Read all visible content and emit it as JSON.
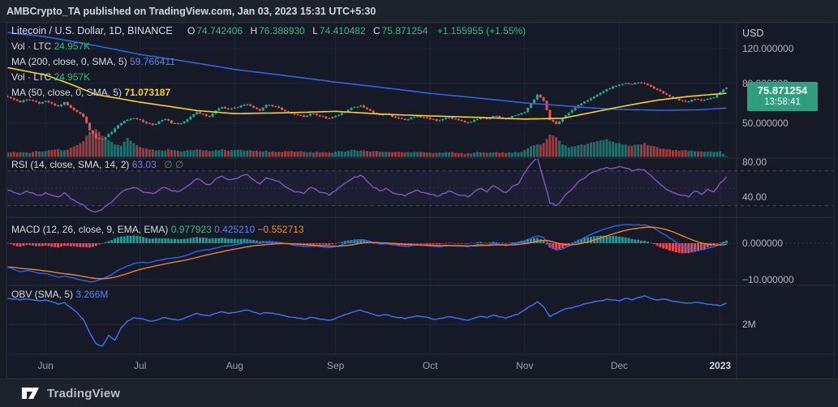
{
  "header": {
    "title": "AMBCrypto_TA published on TradingView.com, Jan 03, 2023 15:31 UTC+5:30"
  },
  "footer": {
    "brand": "TradingView"
  },
  "legends": {
    "main": {
      "symbol": "Litecoin / U.S. Dollar, 1D, BINANCE",
      "o_label": "O",
      "o": "74.742406",
      "h_label": "H",
      "h": "76.388930",
      "l_label": "L",
      "l": "74.410482",
      "c_label": "C",
      "c": "75.871254",
      "change": "+1.155955 (+1.55%)"
    },
    "vol_top": {
      "label": "Vol · LTC",
      "value": "24.957K"
    },
    "ma200": {
      "label": "MA (200, close, 0, SMA, 5)",
      "value": "59.766411"
    },
    "vol_bottom": {
      "label": "Vol · LTC",
      "value": "24.957K"
    },
    "ma50": {
      "label": "MA (50, close, 0, SMA, 5)",
      "value": "71.073187"
    },
    "rsi": {
      "label": "RSI (14, close, SMA, 14, 2)",
      "value": "63.03",
      "empty": "∅  ∅"
    },
    "macd": {
      "label": "MACD (12, 26, close, 9, EMA, EMA)",
      "hist": "0.977923",
      "macd": "0.425210",
      "signal": "−0.552713"
    },
    "obv": {
      "label": "OBV (SMA, 5)",
      "value": "3.266M"
    }
  },
  "axis": {
    "currency": "USD",
    "tag": {
      "price": "75.871254",
      "countdown": "13:58:41"
    }
  },
  "colors": {
    "panel_bg": "#151a26",
    "border": "#2a2e39",
    "grid": "#1f2434",
    "dashed": "#787b86",
    "up": "#26a69a",
    "down": "#ef5350",
    "hist_neg": "#f7525f",
    "ma50": "#f5d327",
    "ma200": "#2e64e8",
    "rsi": "#7e57c2",
    "rsi_band": "rgba(126,87,194,0.08)",
    "macd_line": "#2962ff",
    "signal_line": "#ef8232",
    "obv": "#3b6ef0",
    "tag_bg": "#2f9e7f"
  },
  "chart_data": {
    "type": "candlestick+indicators",
    "symbol": "LTCUSD",
    "timeframe": "1D",
    "panes": [
      "price+volume",
      "RSI",
      "MACD",
      "OBV"
    ],
    "price_scale": "log",
    "months": [
      {
        "label": "Jun",
        "i": 6
      },
      {
        "label": "Jul",
        "i": 21
      },
      {
        "label": "Aug",
        "i": 36
      },
      {
        "label": "Sep",
        "i": 52
      },
      {
        "label": "Oct",
        "i": 67
      },
      {
        "label": "Nov",
        "i": 82
      },
      {
        "label": "Dec",
        "i": 97
      },
      {
        "label": "2023",
        "i": 113,
        "highlight": true
      }
    ],
    "close": [
      68,
      66,
      64,
      66,
      65,
      63,
      65,
      63,
      61,
      64,
      60,
      57,
      54,
      46,
      42,
      41.5,
      44,
      47,
      50,
      52,
      53,
      52,
      50,
      49,
      51,
      52.5,
      50,
      49.5,
      51,
      54,
      57,
      55.5,
      54,
      58,
      60.5,
      59,
      60,
      61.5,
      62.5,
      60,
      58,
      62,
      61,
      60,
      57.5,
      56,
      55,
      54,
      56,
      55,
      54,
      53,
      54.5,
      56.5,
      58.5,
      60.5,
      61.5,
      59,
      56.5,
      55,
      56,
      54,
      53,
      52,
      53.5,
      54.5,
      53.5,
      52.5,
      51.5,
      52.5,
      53.5,
      52.5,
      51.5,
      50.5,
      52,
      53.5,
      52.5,
      54.5,
      53.5,
      52.5,
      54.5,
      55.5,
      57,
      63,
      70,
      65,
      52,
      49.5,
      53,
      56.5,
      60,
      63,
      65.5,
      68.5,
      71.5,
      74.5,
      77,
      78.5,
      80,
      79,
      80.5,
      79.5,
      77,
      74,
      71,
      68.5,
      66.5,
      65,
      64.5,
      66.5,
      65.5,
      66.5,
      67.5,
      72,
      75.871254
    ],
    "volume_k": [
      350,
      380,
      360,
      340,
      380,
      420,
      450,
      520,
      600,
      500,
      700,
      900,
      1200,
      1900,
      2100,
      1600,
      1300,
      950,
      850,
      1450,
      1050,
      750,
      640,
      560,
      520,
      490,
      530,
      470,
      450,
      510,
      570,
      490,
      440,
      530,
      590,
      470,
      520,
      540,
      490,
      450,
      430,
      470,
      410,
      390,
      430,
      450,
      410,
      390,
      370,
      390,
      370,
      350,
      390,
      430,
      470,
      530,
      490,
      450,
      430,
      410,
      390,
      370,
      390,
      350,
      340,
      370,
      350,
      330,
      310,
      320,
      340,
      310,
      300,
      290,
      330,
      350,
      310,
      330,
      310,
      300,
      320,
      340,
      520,
      820,
      950,
      1050,
      1700,
      1500,
      950,
      720,
      820,
      930,
      1020,
      1120,
      1250,
      1350,
      1150,
      1050,
      950,
      850,
      950,
      1050,
      850,
      750,
      620,
      580,
      540,
      500,
      460,
      440,
      420,
      400,
      380,
      420,
      25
    ],
    "rsi": [
      48,
      45,
      43,
      47,
      45,
      42,
      45,
      42,
      40,
      45,
      38,
      34,
      31,
      25,
      23,
      26,
      32,
      38,
      45,
      49,
      51,
      48,
      45,
      44,
      48,
      51,
      47,
      46,
      50,
      55,
      61,
      57,
      54,
      61,
      64,
      60,
      61,
      64,
      66,
      60,
      55,
      62,
      60,
      58,
      52,
      48,
      46,
      44,
      51,
      48,
      45,
      42,
      47,
      53,
      58,
      63,
      65,
      58,
      51,
      47,
      50,
      45,
      43,
      41,
      45,
      48,
      45,
      43,
      41,
      44,
      47,
      44,
      42,
      40,
      46,
      50,
      46,
      53,
      49,
      45,
      52,
      55,
      68,
      78,
      85,
      60,
      33,
      30,
      38,
      46,
      53,
      60,
      65,
      69,
      72,
      74,
      73,
      75,
      73,
      70,
      72,
      71,
      65,
      58,
      52,
      47,
      44,
      42,
      40,
      47,
      43,
      49,
      46,
      56,
      63.03
    ],
    "macd": [
      -6.5,
      -7.2,
      -7.8,
      -7.5,
      -7.8,
      -8.2,
      -8.3,
      -8.8,
      -9.3,
      -9,
      -9.4,
      -9.8,
      -10.2,
      -10.6,
      -10.4,
      -9.8,
      -9,
      -8,
      -7,
      -6.2,
      -5.6,
      -5.3,
      -5.3,
      -5.1,
      -4.7,
      -4.3,
      -4.1,
      -3.9,
      -3.5,
      -2.9,
      -2.2,
      -1.9,
      -1.8,
      -1.3,
      -0.8,
      -0.7,
      -0.4,
      -0.1,
      0.2,
      0.2,
      0,
      0.2,
      0.3,
      0.2,
      -0.1,
      -0.4,
      -0.7,
      -0.9,
      -0.8,
      -0.8,
      -1,
      -1.2,
      -0.9,
      -0.4,
      0.2,
      0.7,
      1,
      0.7,
      0.2,
      -0.2,
      -0.1,
      -0.4,
      -0.7,
      -0.9,
      -0.7,
      -0.5,
      -0.6,
      -0.8,
      -0.9,
      -0.8,
      -0.6,
      -0.7,
      -0.8,
      -0.9,
      -0.6,
      -0.3,
      -0.5,
      -0.1,
      -0.3,
      -0.6,
      -0.2,
      0.1,
      0.6,
      1.3,
      2,
      1.6,
      -0.6,
      -1.8,
      -1.6,
      -0.8,
      0.2,
      1.1,
      2,
      2.8,
      3.5,
      4.1,
      4.6,
      4.9,
      5.1,
      5,
      5.1,
      5,
      4.5,
      3.6,
      2.5,
      1.4,
      0.3,
      -0.7,
      -1.4,
      -1.7,
      -1.8,
      -1.4,
      -1,
      -0.3,
      0.42521
    ],
    "obv_m": [
      3.55,
      3.5,
      3.45,
      3.5,
      3.45,
      3.4,
      3.45,
      3.35,
      3.2,
      3.3,
      3,
      2.7,
      2.3,
      1.5,
      0.85,
      0.7,
      1.35,
      1.05,
      1.8,
      2.2,
      2.4,
      2.35,
      2.25,
      2.2,
      2.3,
      2.4,
      2.3,
      2.25,
      2.35,
      2.5,
      2.65,
      2.55,
      2.5,
      2.65,
      2.75,
      2.65,
      2.7,
      2.78,
      2.85,
      2.72,
      2.6,
      2.7,
      2.66,
      2.6,
      2.5,
      2.42,
      2.36,
      2.3,
      2.42,
      2.36,
      2.3,
      2.24,
      2.35,
      2.5,
      2.62,
      2.76,
      2.85,
      2.72,
      2.6,
      2.5,
      2.58,
      2.46,
      2.4,
      2.34,
      2.42,
      2.5,
      2.44,
      2.36,
      2.3,
      2.36,
      2.46,
      2.38,
      2.3,
      2.24,
      2.36,
      2.48,
      2.4,
      2.54,
      2.44,
      2.36,
      2.5,
      2.6,
      2.85,
      3.1,
      3.35,
      3.05,
      2.45,
      2.65,
      2.85,
      2.95,
      3.05,
      3.15,
      3.25,
      3.35,
      3.4,
      3.5,
      3.45,
      3.4,
      3.55,
      3.45,
      3.6,
      3.7,
      3.55,
      3.45,
      3.5,
      3.42,
      3.36,
      3.3,
      3.26,
      3.32,
      3.26,
      3.2,
      3.16,
      3.1,
      3.266
    ],
    "ma50_anchors": [
      [
        0,
        96
      ],
      [
        6,
        88
      ],
      [
        14,
        70
      ],
      [
        21,
        64
      ],
      [
        30,
        58
      ],
      [
        36,
        56
      ],
      [
        44,
        56.5
      ],
      [
        52,
        57.5
      ],
      [
        60,
        55.5
      ],
      [
        67,
        54.5
      ],
      [
        75,
        53.5
      ],
      [
        82,
        52.5
      ],
      [
        88,
        53
      ],
      [
        93,
        57
      ],
      [
        97,
        60.5
      ],
      [
        103,
        65.5
      ],
      [
        108,
        68.5
      ],
      [
        114,
        71.073187
      ]
    ],
    "ma200_anchors": [
      [
        0,
        145
      ],
      [
        6,
        138
      ],
      [
        21,
        112
      ],
      [
        36,
        94
      ],
      [
        52,
        81
      ],
      [
        67,
        71
      ],
      [
        82,
        63.5
      ],
      [
        92,
        60
      ],
      [
        97,
        58.8
      ],
      [
        104,
        58.2
      ],
      [
        110,
        58.6
      ],
      [
        114,
        59.766411
      ]
    ],
    "last_ohlc": {
      "o": 74.742406,
      "h": 76.38893,
      "l": 74.410482,
      "c": 75.871254
    },
    "price_axis": {
      "ticks": [
        {
          "v": 120,
          "label": "120.000000"
        },
        {
          "v": 80,
          "label": "80.000000"
        },
        {
          "v": 50,
          "label": "50.000000"
        }
      ]
    },
    "rsi_axis": {
      "ticks": [
        {
          "v": 80,
          "label": "80.00"
        },
        {
          "v": 40,
          "label": "40.00"
        }
      ],
      "guides": [
        70,
        50,
        30
      ]
    },
    "macd_axis": {
      "ticks": [
        {
          "v": 0,
          "label": "0.000000"
        },
        {
          "v": -10,
          "label": "−10.000000"
        }
      ]
    },
    "obv_axis": {
      "ticks": [
        {
          "v": 2,
          "label": "2M"
        }
      ]
    }
  }
}
